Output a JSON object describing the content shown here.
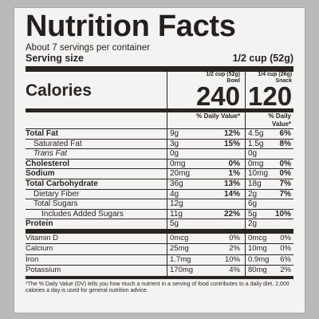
{
  "title": "Nutrition Facts",
  "servings_per_container": "About 7 servings per container",
  "serving_size": {
    "label": "Serving size",
    "value": "1/2 cup (52g)"
  },
  "columns": [
    {
      "line1": "1/2 cup (52g)",
      "line2": "Bowl",
      "calories": "240"
    },
    {
      "line1": "1/4 cup (26g)",
      "line2": "Snack",
      "calories": "120"
    }
  ],
  "calories_label": "Calories",
  "dv_header": "% Daily Value*",
  "nutrients": [
    {
      "name": "Total Fat",
      "bold": true,
      "indent": 0,
      "c1": {
        "amt": "9g",
        "pct": "12%"
      },
      "c2": {
        "amt": "4.5g",
        "pct": "6%"
      }
    },
    {
      "name": "Saturated Fat",
      "bold": false,
      "indent": 1,
      "c1": {
        "amt": "3g",
        "pct": "15%"
      },
      "c2": {
        "amt": "1.5g",
        "pct": "8%"
      }
    },
    {
      "name": "Trans Fat",
      "bold": false,
      "indent": 1,
      "italic": true,
      "c1": {
        "amt": "0g",
        "pct": ""
      },
      "c2": {
        "amt": "0g",
        "pct": ""
      }
    },
    {
      "name": "Cholesterol",
      "bold": true,
      "indent": 0,
      "c1": {
        "amt": "0mg",
        "pct": "0%"
      },
      "c2": {
        "amt": "0mg",
        "pct": "0%"
      }
    },
    {
      "name": "Sodium",
      "bold": true,
      "indent": 0,
      "c1": {
        "amt": "20mg",
        "pct": "1%"
      },
      "c2": {
        "amt": "10mg",
        "pct": "0%"
      }
    },
    {
      "name": "Total Carbohydrate",
      "bold": true,
      "indent": 0,
      "c1": {
        "amt": "36g",
        "pct": "13%"
      },
      "c2": {
        "amt": "18g",
        "pct": "7%"
      }
    },
    {
      "name": "Dietary Fiber",
      "bold": false,
      "indent": 1,
      "c1": {
        "amt": "4g",
        "pct": "14%"
      },
      "c2": {
        "amt": "2g",
        "pct": "7%"
      }
    },
    {
      "name": "Total Sugars",
      "bold": false,
      "indent": 1,
      "c1": {
        "amt": "12g",
        "pct": ""
      },
      "c2": {
        "amt": "6g",
        "pct": ""
      }
    },
    {
      "name": "Includes Added Sugars",
      "bold": false,
      "indent": 2,
      "c1": {
        "amt": "11g",
        "pct": "22%"
      },
      "c2": {
        "amt": "5g",
        "pct": "10%"
      }
    },
    {
      "name": "Protein",
      "bold": true,
      "indent": 0,
      "c1": {
        "amt": "5g",
        "pct": ""
      },
      "c2": {
        "amt": "2g",
        "pct": ""
      }
    }
  ],
  "vitamins": [
    {
      "name": "Vitamin D",
      "c1": {
        "amt": "0mcg",
        "pct": "0%"
      },
      "c2": {
        "amt": "0mcg",
        "pct": "0%"
      }
    },
    {
      "name": "Calcium",
      "c1": {
        "amt": "25mg",
        "pct": "2%"
      },
      "c2": {
        "amt": "10mg",
        "pct": "0%"
      }
    },
    {
      "name": "Iron",
      "c1": {
        "amt": "1.7mg",
        "pct": "10%"
      },
      "c2": {
        "amt": "0.9mg",
        "pct": "6%"
      }
    },
    {
      "name": "Potassium",
      "c1": {
        "amt": "170mg",
        "pct": "4%"
      },
      "c2": {
        "amt": "80mg",
        "pct": "2%"
      }
    }
  ],
  "footnote": "*The % Daily Value (DV) tells you how much a nutrient in a serving of food contributes to a daily diet. 2,000 calories a day is used for general nutrition advice."
}
